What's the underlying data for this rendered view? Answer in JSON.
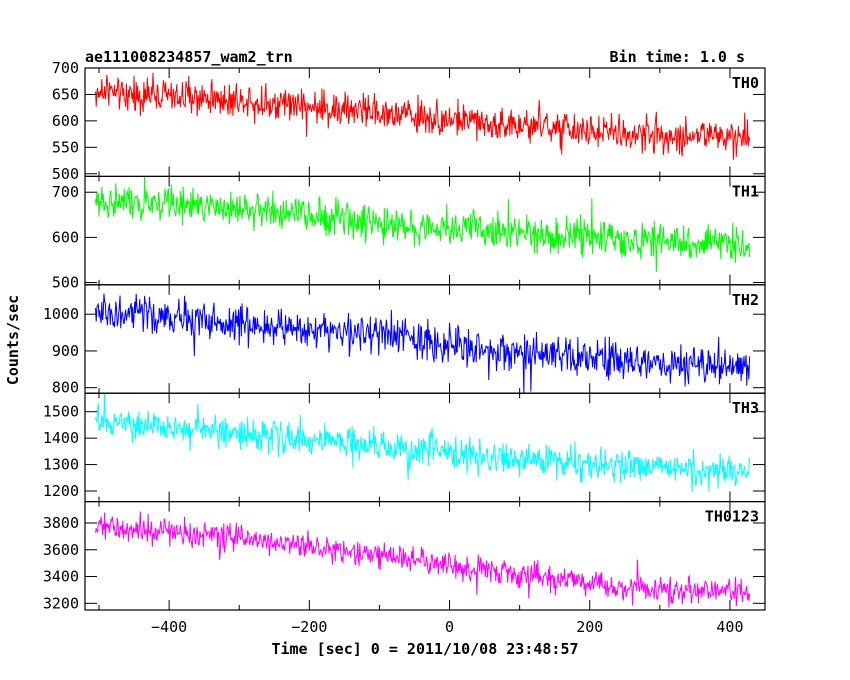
{
  "chart_data": {
    "type": "line",
    "title": "ae111008234857_wam2_trn",
    "bin_time_label": "Bin time: 1.0 s",
    "xlabel": "Time [sec] 0 = 2011/10/08 23:48:57",
    "ylabel": "Counts/sec",
    "xlim": [
      -520,
      450
    ],
    "x_ticks": [
      -400,
      -200,
      0,
      200,
      400
    ],
    "x_tick_labels": [
      "−400",
      "−200",
      "0",
      "200",
      "400"
    ],
    "x_data_range": [
      -505,
      428
    ],
    "grid": false,
    "panels": [
      {
        "name": "TH0",
        "color": "#ff0000",
        "ylim": [
          495,
          700
        ],
        "y_ticks": [
          500,
          550,
          600,
          650,
          700
        ],
        "y_tick_labels": [
          "500",
          "550",
          "600",
          "650",
          "700"
        ],
        "trend": [
          [
            -505,
            655
          ],
          [
            -300,
            640
          ],
          [
            -100,
            615
          ],
          [
            100,
            590
          ],
          [
            300,
            572
          ],
          [
            428,
            570
          ]
        ],
        "noise": 25
      },
      {
        "name": "TH1",
        "color": "#00ff00",
        "ylim": [
          495,
          735
        ],
        "y_ticks": [
          500,
          600,
          700
        ],
        "y_tick_labels": [
          "500",
          "600",
          "700"
        ],
        "trend": [
          [
            -505,
            680
          ],
          [
            -300,
            665
          ],
          [
            -100,
            630
          ],
          [
            100,
            610
          ],
          [
            300,
            590
          ],
          [
            428,
            585
          ]
        ],
        "noise": 30
      },
      {
        "name": "TH2",
        "color": "#0000ff",
        "ylim": [
          785,
          1080
        ],
        "y_ticks": [
          800,
          900,
          1000
        ],
        "y_tick_labels": [
          "800",
          "900",
          "1000"
        ],
        "trend": [
          [
            -505,
            1005
          ],
          [
            -300,
            975
          ],
          [
            -100,
            945
          ],
          [
            100,
            890
          ],
          [
            300,
            865
          ],
          [
            428,
            855
          ]
        ],
        "noise": 40
      },
      {
        "name": "TH3",
        "color": "#00ffff",
        "ylim": [
          1160,
          1570
        ],
        "y_ticks": [
          1200,
          1300,
          1400,
          1500
        ],
        "y_tick_labels": [
          "1200",
          "1300",
          "1400",
          "1500"
        ],
        "trend": [
          [
            -505,
            1460
          ],
          [
            -300,
            1420
          ],
          [
            -100,
            1370
          ],
          [
            100,
            1320
          ],
          [
            300,
            1290
          ],
          [
            428,
            1270
          ]
        ],
        "noise": 45
      },
      {
        "name": "TH0123",
        "color": "#ff00ff",
        "ylim": [
          3150,
          3960
        ],
        "y_ticks": [
          3200,
          3400,
          3600,
          3800
        ],
        "y_tick_labels": [
          "3200",
          "3400",
          "3600",
          "3800"
        ],
        "trend": [
          [
            -505,
            3770
          ],
          [
            -300,
            3690
          ],
          [
            -100,
            3560
          ],
          [
            100,
            3410
          ],
          [
            300,
            3300
          ],
          [
            428,
            3280
          ]
        ],
        "noise": 75
      }
    ]
  }
}
